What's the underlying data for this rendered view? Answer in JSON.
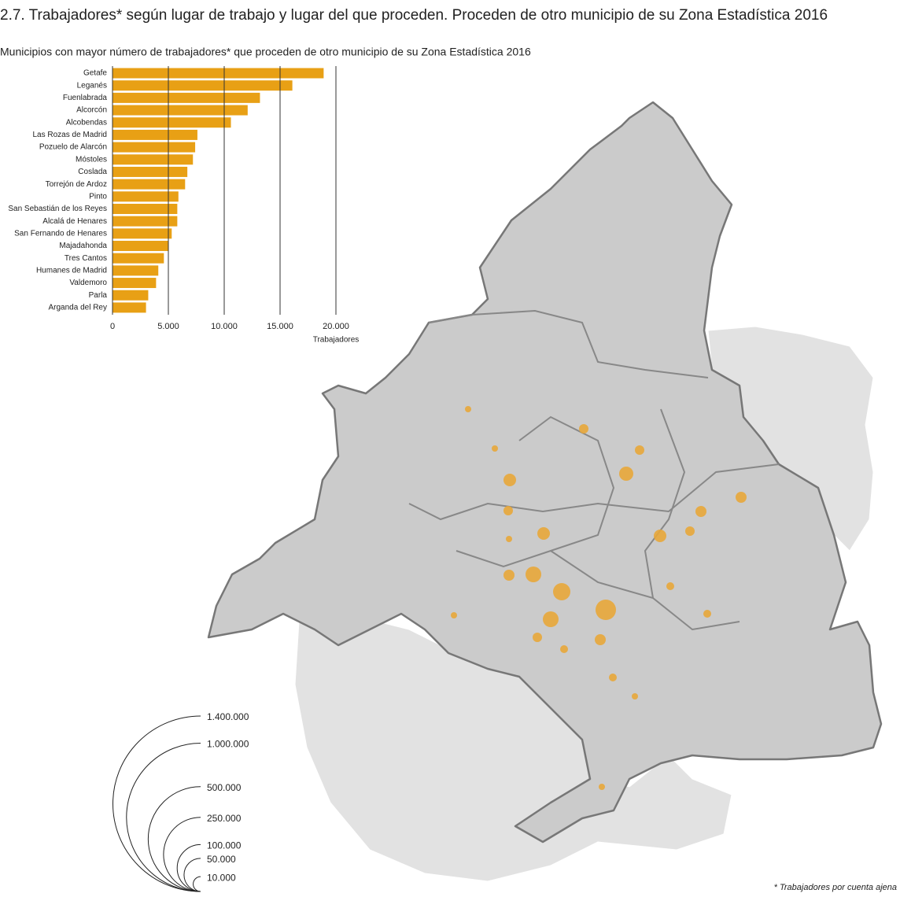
{
  "title": "2.7. Trabajadores* según lugar de trabajo y lugar del que proceden. Proceden de otro municipio de su Zona Estadística 2016",
  "footnote": "* Trabajadores por cuenta ajena",
  "chart_data": [
    {
      "type": "bar",
      "title": "Municipios con mayor número de trabajadores* que proceden de otro municipio de su Zona Estadística 2016",
      "categories": [
        "Getafe",
        "Leganés",
        "Fuenlabrada",
        "Alcorcón",
        "Alcobendas",
        "Las Rozas de Madrid",
        "Pozuelo de Alarcón",
        "Móstoles",
        "Coslada",
        "Torrejón de Ardoz",
        "Pinto",
        "San Sebastián de los Reyes",
        "Alcalá de Henares",
        "San Fernando de Henares",
        "Majadahonda",
        "Tres Cantos",
        "Humanes de Madrid",
        "Valdemoro",
        "Parla",
        "Arganda del Rey"
      ],
      "values": [
        18900,
        16100,
        13200,
        12100,
        10600,
        7600,
        7400,
        7200,
        6700,
        6500,
        5900,
        5800,
        5800,
        5300,
        5000,
        4600,
        4100,
        3900,
        3200,
        3000
      ],
      "color": "#e8a015",
      "xlim": [
        0,
        20000
      ],
      "xticks": [
        0,
        {
          "value": 5000,
          "label": "5.000"
        },
        {
          "value": 10000,
          "label": "10.000"
        },
        {
          "value": 15000,
          "label": "15.000"
        },
        {
          "value": 20000,
          "label": "20.000"
        }
      ],
      "x_label": "Trabajadores",
      "grid": true
    },
    {
      "type": "bubble_map",
      "color": "#e8a73a",
      "values": [
        19040,
        13630,
        11260,
        11260,
        9120,
        7210,
        7210,
        7210,
        5520,
        5520,
        4050,
        4050,
        4050,
        5520,
        4050,
        5520,
        4050,
        2820,
        2820,
        2820,
        2820,
        1800,
        1800,
        1800,
        1800,
        1800,
        1800
      ],
      "size_ticks": [
        {
          "value": 1400000,
          "label": "1.400.000"
        },
        {
          "value": 1000000,
          "label": "1.000.000"
        },
        {
          "value": 500000,
          "label": "500.000"
        },
        {
          "value": 250000,
          "label": "250.000"
        },
        {
          "value": 100000,
          "label": "100.000"
        },
        {
          "value": 50000,
          "label": "50.000"
        },
        {
          "value": 10000,
          "label": "10.000"
        }
      ]
    }
  ]
}
